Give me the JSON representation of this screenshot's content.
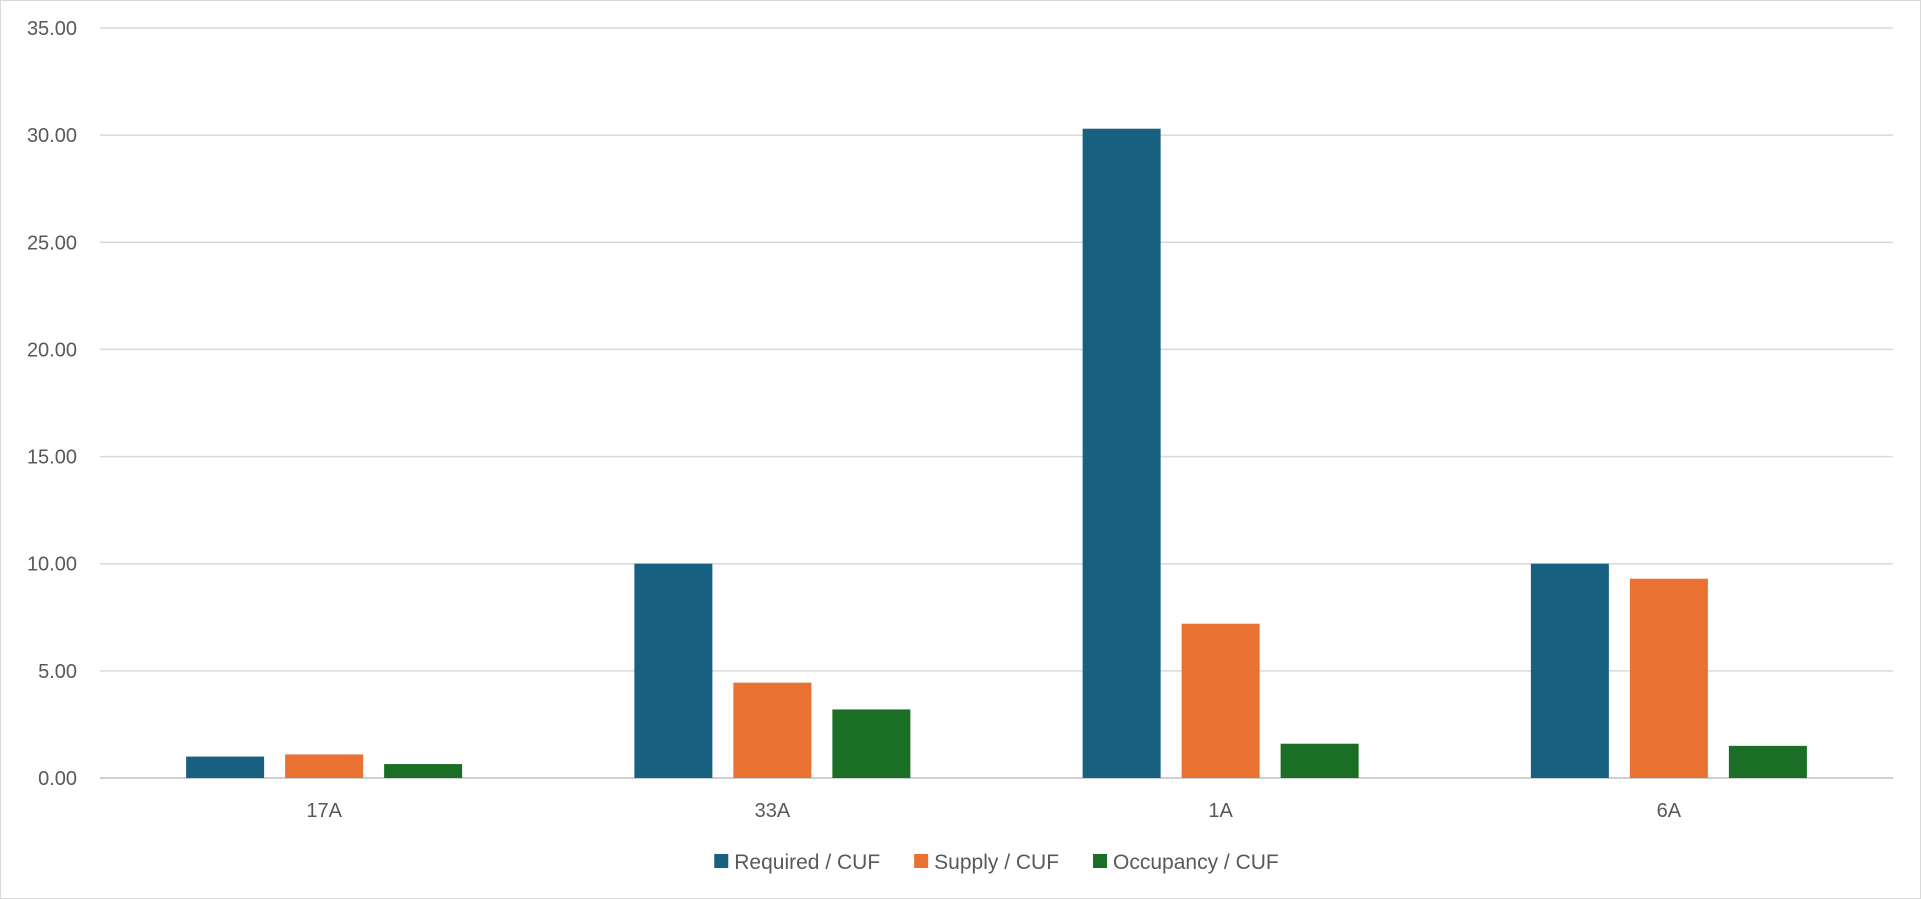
{
  "chart_data": {
    "type": "bar",
    "title": "",
    "xlabel": "",
    "ylabel": "",
    "categories": [
      "17A",
      "33A",
      "1A",
      "6A"
    ],
    "series": [
      {
        "name": "Required / CUF",
        "color": "#17607f",
        "values": [
          1.0,
          10.0,
          30.3,
          10.0
        ]
      },
      {
        "name": "Supply / CUF",
        "color": "#e97132",
        "values": [
          1.1,
          4.45,
          7.2,
          9.3
        ]
      },
      {
        "name": "Occupancy / CUF",
        "color": "#1b6e25",
        "values": [
          0.65,
          3.2,
          1.6,
          1.5
        ]
      }
    ],
    "ylim": [
      0,
      35
    ],
    "yticks": [
      "0.00",
      "5.00",
      "10.00",
      "15.00",
      "20.00",
      "25.00",
      "30.00",
      "35.00"
    ],
    "grid": true,
    "legend_position": "bottom"
  }
}
